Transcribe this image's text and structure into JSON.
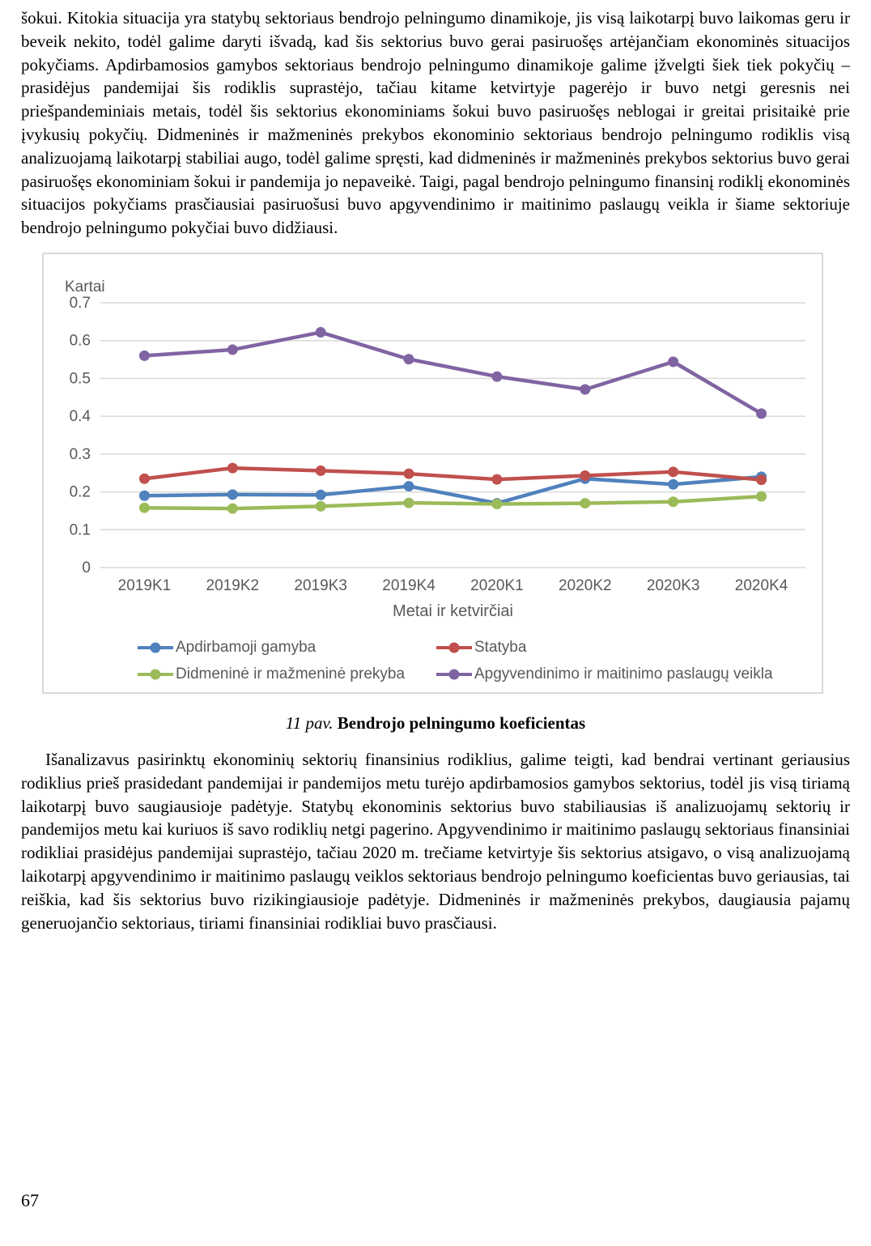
{
  "page": {
    "number": "67"
  },
  "paragraphs": {
    "p1": "šokui. Kitokia situacija yra statybų sektoriaus bendrojo pelningumo dinamikoje, jis visą laikotarpį buvo laikomas geru ir beveik nekito, todėl galime daryti išvadą, kad šis sektorius buvo gerai pasiruošęs artėjančiam ekonominės situacijos pokyčiams. Apdirbamosios gamybos sektoriaus bendrojo pelningumo dinamikoje galime įžvelgti šiek tiek pokyčių – prasidėjus pandemijai šis rodiklis suprastėjo, tačiau kitame ketvirtyje pagerėjo ir buvo netgi geresnis nei priešpandeminiais metais, todėl šis sektorius ekonominiams šokui buvo pasiruošęs neblogai ir greitai prisitaikė prie įvykusių pokyčių. Didmeninės ir mažmeninės prekybos ekonominio sektoriaus bendrojo pelningumo rodiklis visą analizuojamą laikotarpį stabiliai augo, todėl galime spręsti, kad didmeninės ir mažmeninės prekybos sektorius buvo gerai pasiruošęs ekonominiam šokui ir pandemija jo nepaveikė. Taigi, pagal bendrojo pelningumo finansinį rodiklį ekonominės situacijos pokyčiams prasčiausiai pasiruošusi buvo apgyvendinimo ir maitinimo paslaugų veikla ir šiame sektoriuje bendrojo pelningumo pokyčiai buvo didžiausi.",
    "p2": "Išanalizavus pasirinktų ekonominių sektorių finansinius rodiklius, galime teigti, kad bendrai vertinant geriausius rodiklius prieš prasidedant pandemijai ir pandemijos metu turėjo apdirbamosios gamybos sektorius, todėl jis visą tiriamą laikotarpį buvo saugiausioje padėtyje. Statybų ekonominis sektorius buvo stabiliausias iš analizuojamų sektorių ir pandemijos metu kai kuriuos iš savo rodiklių netgi pagerino. Apgyvendinimo ir maitinimo paslaugų sektoriaus finansiniai rodikliai prasidėjus pandemijai suprastėjo, tačiau 2020 m. trečiame ketvirtyje šis sektorius atsigavo, o visą analizuojamą laikotarpį apgyvendinimo ir maitinimo paslaugų veiklos sektoriaus bendrojo pelningumo koeficientas buvo geriausias, tai reiškia, kad šis sektorius buvo rizikingiausioje padėtyje. Didmeninės ir mažmeninės prekybos, daugiausia pajamų generuojančio sektoriaus, tiriami finansiniai rodikliai buvo prasčiausi."
  },
  "figure": {
    "caption_label": "11 pav.",
    "caption_text": "Bendrojo pelningumo koeficientas"
  },
  "chart_data": {
    "type": "line",
    "title": "",
    "ylabel": "Kartai",
    "xlabel": "Metai ir ketvirčiai",
    "categories": [
      "2019K1",
      "2019K2",
      "2019K3",
      "2019K4",
      "2020K1",
      "2020K2",
      "2020K3",
      "2020K4"
    ],
    "series": [
      {
        "name": "Apdirbamoji gamyba",
        "color": "#4F81BD",
        "values": [
          0.19,
          0.193,
          0.192,
          0.215,
          0.17,
          0.235,
          0.22,
          0.24
        ]
      },
      {
        "name": "Statyba",
        "color": "#C0504D",
        "values": [
          0.235,
          0.263,
          0.256,
          0.248,
          0.233,
          0.243,
          0.253,
          0.232
        ]
      },
      {
        "name": "Didmeninė ir mažmeninė prekyba",
        "color": "#9BBB59",
        "values": [
          0.158,
          0.156,
          0.162,
          0.171,
          0.168,
          0.17,
          0.174,
          0.188
        ]
      },
      {
        "name": "Apgyvendinimo ir maitinimo paslaugų veikla",
        "color": "#8064A2",
        "values": [
          0.56,
          0.576,
          0.622,
          0.551,
          0.505,
          0.471,
          0.544,
          0.407
        ]
      }
    ],
    "ylim": [
      0,
      0.7
    ],
    "yticks": [
      "0",
      "0.1",
      "0.2",
      "0.3",
      "0.4",
      "0.5",
      "0.6",
      "0.7"
    ],
    "grid": true,
    "legend_position": "bottom",
    "colors": {
      "gridline": "#D9D9D9",
      "axis_text": "#595959",
      "border": "#D9D9D9"
    }
  }
}
